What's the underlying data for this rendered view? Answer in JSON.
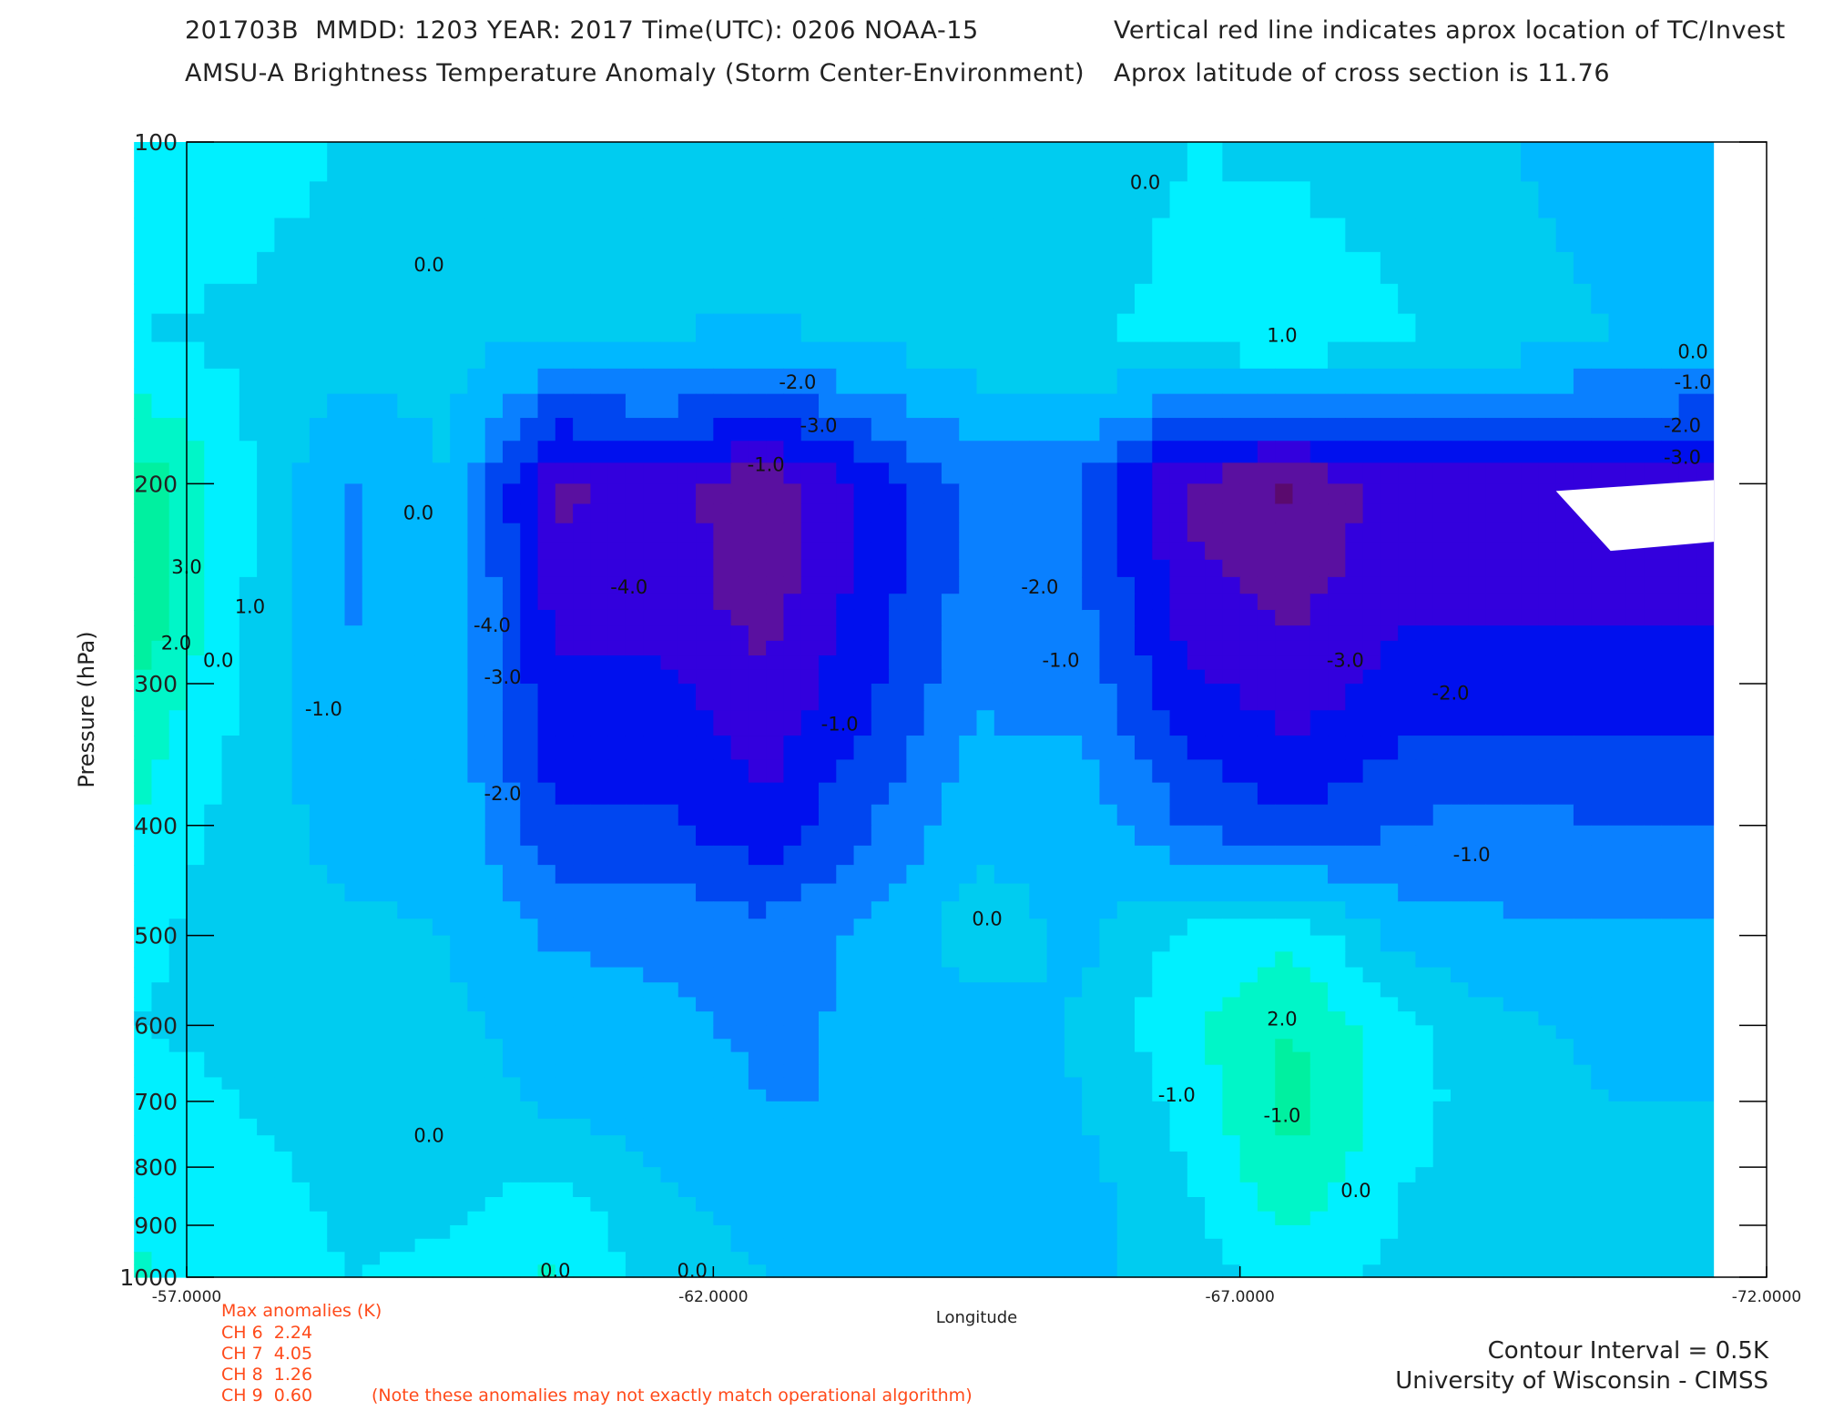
{
  "header": {
    "line1": "201703B  MMDD: 1203 YEAR: 2017 Time(UTC): 0206 NOAA-15",
    "line2": "AMSU-A Brightness Temperature Anomaly (Storm Center-Environment)",
    "line3": "Vertical red line indicates aprox location of TC/Invest",
    "line4": "Aprox latitude of cross section is 11.76"
  },
  "chart_data": {
    "type": "heatmap",
    "title": "AMSU-A Brightness Temperature Anomaly (Storm Center-Environment)",
    "xlabel": "Longitude",
    "ylabel": "Pressure (hPa)",
    "xlim": [
      -57.0,
      -72.0
    ],
    "x_ticks": [
      -57.0,
      -62.0,
      -67.0,
      -72.0
    ],
    "x_tick_labels": [
      "-57.0000",
      "-62.0000",
      "-67.0000",
      "-72.0000"
    ],
    "y_scale": "log",
    "ylim": [
      1000,
      100
    ],
    "y_ticks": [
      100,
      200,
      300,
      400,
      500,
      600,
      700,
      800,
      900,
      1000
    ],
    "y_tick_labels": [
      "100",
      "200",
      "300",
      "400",
      "500",
      "600",
      "700",
      "800",
      "900",
      "1000"
    ],
    "contour_interval": 0.5,
    "data_xlim": [
      -56.5,
      -71.5
    ],
    "colors": [
      "#5a0a6e",
      "#5a10a0",
      "#3300dd",
      "#0010ee",
      "#0046f0",
      "#0a80ff",
      "#00b8ff",
      "#00ccf0",
      "#00f0ff",
      "#00f6c8",
      "#00f0a0",
      "#00ea70",
      "#20e840",
      "#60e830",
      "#a0f040"
    ],
    "cells": {
      "lon": [
        -56.5,
        -57.5,
        -58.5,
        -59.5,
        -60.5,
        -61.5,
        -62.5,
        -63.5,
        -64.5,
        -65.5,
        -66.5,
        -67.5,
        -68.5,
        -69.5,
        -70.5,
        -71.5
      ],
      "p": [
        100,
        150,
        200,
        250,
        300,
        400,
        500,
        600,
        700,
        850,
        1000
      ],
      "v": [
        [
          0.5,
          0.5,
          0.3,
          0.2,
          0.0,
          0.0,
          0.3,
          0.0,
          0.0,
          0.0,
          0.3,
          0.2,
          0.0,
          -0.3,
          -0.5,
          -0.8
        ],
        [
          0.3,
          0.2,
          0.0,
          -0.1,
          -0.3,
          -0.3,
          -0.4,
          -0.2,
          0.0,
          0.2,
          0.5,
          0.8,
          0.4,
          0.0,
          -0.3,
          -0.5
        ],
        [
          2.0,
          0.5,
          -1.0,
          -0.3,
          -3.5,
          -3.0,
          -3.8,
          -2.5,
          -1.2,
          -1.5,
          -3.5,
          -4.0,
          -3.0,
          -3.0,
          -3.0,
          -3.0
        ],
        [
          2.2,
          0.4,
          -1.0,
          -0.4,
          -3.0,
          -3.0,
          -3.6,
          -2.4,
          -1.2,
          -1.4,
          -3.0,
          -3.5,
          -2.8,
          -2.8,
          -2.8,
          -2.8
        ],
        [
          1.5,
          0.3,
          -0.8,
          -0.6,
          -2.6,
          -2.6,
          -3.2,
          -2.2,
          -1.0,
          -1.2,
          -2.6,
          -3.0,
          -2.5,
          -2.5,
          -2.5,
          -2.5
        ],
        [
          0.8,
          0.0,
          -0.5,
          -0.4,
          -2.0,
          -2.0,
          -2.5,
          -1.5,
          -0.5,
          -0.5,
          -1.5,
          -2.0,
          -1.5,
          -1.2,
          -1.5,
          -1.5
        ],
        [
          0.4,
          0.1,
          -0.2,
          -0.3,
          -1.0,
          -1.0,
          -1.2,
          -0.8,
          0.1,
          -0.5,
          0.5,
          0.8,
          -0.5,
          -0.8,
          -0.8,
          -0.8
        ],
        [
          0.3,
          0.2,
          0.0,
          -0.2,
          -0.5,
          -0.8,
          -1.0,
          -0.8,
          -0.6,
          -0.2,
          0.8,
          1.5,
          0.5,
          -0.2,
          -0.4,
          -0.4
        ],
        [
          0.5,
          0.3,
          0.1,
          -0.1,
          -0.4,
          -0.6,
          -0.9,
          -0.9,
          -0.7,
          -0.3,
          0.5,
          1.8,
          0.6,
          -0.1,
          -0.3,
          -0.3
        ],
        [
          0.8,
          0.5,
          0.2,
          0.2,
          0.5,
          -0.2,
          -0.5,
          -0.8,
          -0.8,
          -0.5,
          0.2,
          1.2,
          0.3,
          0.0,
          -0.2,
          -0.2
        ],
        [
          1.0,
          0.6,
          0.3,
          0.4,
          1.0,
          0.0,
          -0.3,
          -0.5,
          -0.6,
          -0.5,
          0.0,
          0.5,
          0.2,
          0.0,
          -0.1,
          -0.1
        ]
      ]
    },
    "max_anomalies": {
      "title": "Max anomalies (K)",
      "rows": [
        "CH 6  2.24",
        "CH 7  4.05",
        "CH 8  1.26",
        "CH 9  0.60"
      ],
      "note": "(Note these anomalies may not exactly match operational algorithm)"
    },
    "contour_labels": [
      {
        "lon": -57.3,
        "p": 290,
        "text": "0.0"
      },
      {
        "lon": -59.2,
        "p": 215,
        "text": "0.0"
      },
      {
        "lon": -59.3,
        "p": 130,
        "text": "0.0"
      },
      {
        "lon": -59.3,
        "p": 760,
        "text": "0.0"
      },
      {
        "lon": -60.5,
        "p": 1000,
        "text": "0.0"
      },
      {
        "lon": -61.8,
        "p": 1000,
        "text": "0.0"
      },
      {
        "lon": -62.5,
        "p": 195,
        "text": "-1.0"
      },
      {
        "lon": -63.2,
        "p": 330,
        "text": "-1.0"
      },
      {
        "lon": -62.8,
        "p": 165,
        "text": "-2.0"
      },
      {
        "lon": -63.0,
        "p": 180,
        "text": "-3.0"
      },
      {
        "lon": -61.2,
        "p": 250,
        "text": "-4.0"
      },
      {
        "lon": -57.0,
        "p": 240,
        "text": "3.0"
      },
      {
        "lon": -56.9,
        "p": 280,
        "text": "2.0"
      },
      {
        "lon": -57.6,
        "p": 260,
        "text": "1.0"
      },
      {
        "lon": -58.3,
        "p": 320,
        "text": "-1.0"
      },
      {
        "lon": -59.9,
        "p": 270,
        "text": "-4.0"
      },
      {
        "lon": -60.0,
        "p": 300,
        "text": "-3.0"
      },
      {
        "lon": -60.0,
        "p": 380,
        "text": "-2.0"
      },
      {
        "lon": -64.6,
        "p": 490,
        "text": "0.0"
      },
      {
        "lon": -65.1,
        "p": 250,
        "text": "-2.0"
      },
      {
        "lon": -65.3,
        "p": 290,
        "text": "-1.0"
      },
      {
        "lon": -66.1,
        "p": 110,
        "text": "0.0"
      },
      {
        "lon": -67.4,
        "p": 150,
        "text": "1.0"
      },
      {
        "lon": -66.4,
        "p": 700,
        "text": "-1.0"
      },
      {
        "lon": -67.4,
        "p": 600,
        "text": "2.0"
      },
      {
        "lon": -67.4,
        "p": 730,
        "text": "-1.0"
      },
      {
        "lon": -68.1,
        "p": 850,
        "text": "0.0"
      },
      {
        "lon": -68.0,
        "p": 290,
        "text": "-3.0"
      },
      {
        "lon": -69.0,
        "p": 310,
        "text": "-2.0"
      },
      {
        "lon": -69.2,
        "p": 430,
        "text": "-1.0"
      },
      {
        "lon": -71.3,
        "p": 155,
        "text": "0.0"
      },
      {
        "lon": -71.3,
        "p": 165,
        "text": "-1.0"
      },
      {
        "lon": -71.2,
        "p": 180,
        "text": "-2.0"
      },
      {
        "lon": -71.2,
        "p": 192,
        "text": "-3.0"
      }
    ]
  },
  "footer": {
    "contour_interval": "Contour Interval = 0.5K",
    "credit": "University of Wisconsin - CIMSS"
  }
}
